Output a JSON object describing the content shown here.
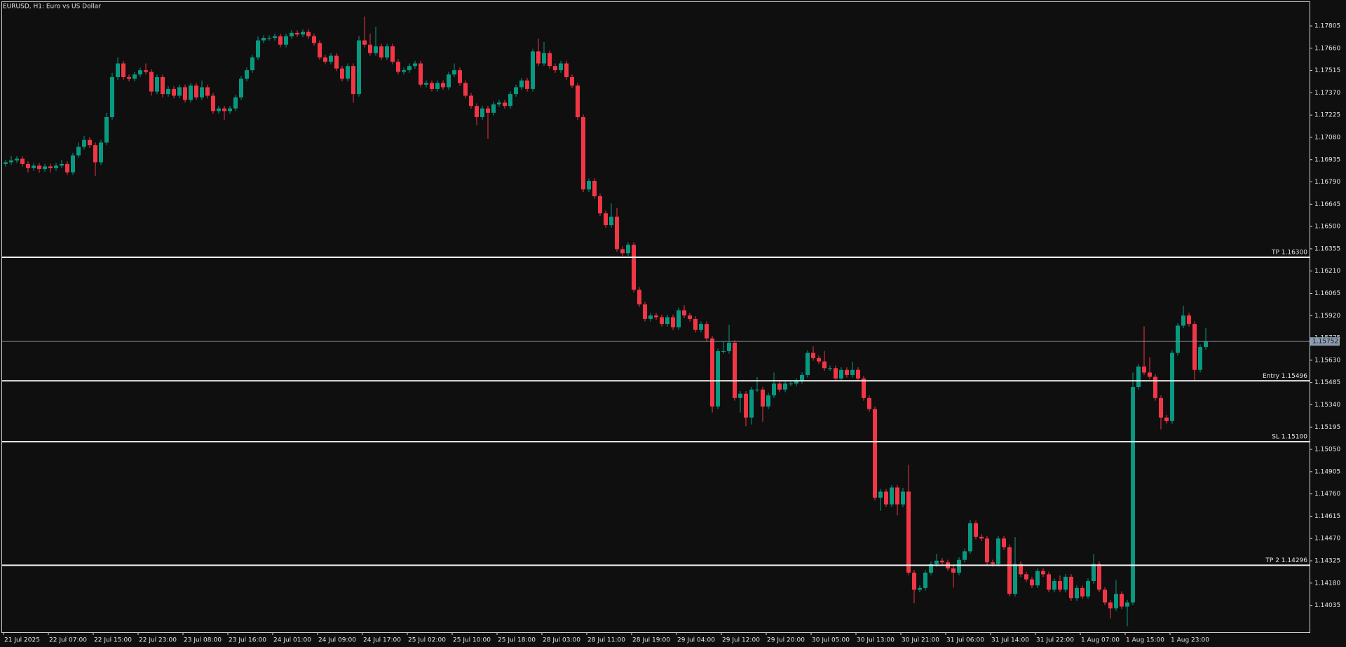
{
  "chart_data": {
    "type": "candlestick",
    "title": "EURUSD, H1:  Euro vs US Dollar",
    "up_color": "#089981",
    "down_color": "#f23645",
    "ylim": [
      1.1386,
      1.1796
    ],
    "yticks": [
      1.17805,
      {
        "value": 1.1766,
        "label": "1.17660"
      },
      1.17515,
      {
        "value": 1.1737,
        "label": "1.17370"
      },
      1.17225,
      {
        "value": 1.1708,
        "label": "1.17080"
      },
      1.16935,
      {
        "value": 1.1679,
        "label": "1.16790"
      },
      1.16645,
      {
        "value": 1.165,
        "label": "1.16500"
      },
      1.16355,
      {
        "value": 1.1621,
        "label": "1.16210"
      },
      1.16065,
      {
        "value": 1.1592,
        "label": "1.15920"
      },
      1.15775,
      {
        "value": 1.1563,
        "label": "1.15630"
      },
      1.15485,
      {
        "value": 1.1534,
        "label": "1.15340"
      },
      1.15195,
      {
        "value": 1.1505,
        "label": "1.15050"
      },
      1.14905,
      {
        "value": 1.1476,
        "label": "1.14760"
      },
      1.14615,
      {
        "value": 1.1447,
        "label": "1.14470"
      },
      1.14325,
      {
        "value": 1.1418,
        "label": "1.14180"
      },
      1.14035
    ],
    "levels": [
      {
        "label": "TP 1.16300",
        "value": 1.163
      },
      {
        "label": "Entry 1.15496",
        "value": 1.15496
      },
      {
        "label": "SL 1.15100",
        "value": 1.151
      },
      {
        "label": "TP 2 1.14296",
        "value": 1.14296
      }
    ],
    "last_price": 1.15752,
    "categories": [
      "21 Jul 2025",
      null,
      null,
      null,
      null,
      null,
      null,
      null,
      "22 Jul 07:00",
      null,
      null,
      null,
      null,
      null,
      null,
      null,
      "22 Jul 15:00",
      null,
      null,
      null,
      null,
      null,
      null,
      null,
      "22 Jul 23:00",
      null,
      null,
      null,
      null,
      null,
      null,
      null,
      "23 Jul 08:00",
      null,
      null,
      null,
      null,
      null,
      null,
      null,
      "23 Jul 16:00",
      null,
      null,
      null,
      null,
      null,
      null,
      null,
      "24 Jul 01:00",
      null,
      null,
      null,
      null,
      null,
      null,
      null,
      "24 Jul 09:00",
      null,
      null,
      null,
      null,
      null,
      null,
      null,
      "24 Jul 17:00",
      null,
      null,
      null,
      null,
      null,
      null,
      null,
      "25 Jul 02:00",
      null,
      null,
      null,
      null,
      null,
      null,
      null,
      "25 Jul 10:00",
      null,
      null,
      null,
      null,
      null,
      null,
      null,
      "25 Jul 18:00",
      null,
      null,
      null,
      null,
      null,
      null,
      null,
      "28 Jul 03:00",
      null,
      null,
      null,
      null,
      null,
      null,
      null,
      "28 Jul 11:00",
      null,
      null,
      null,
      null,
      null,
      null,
      null,
      "28 Jul 19:00",
      null,
      null,
      null,
      null,
      null,
      null,
      null,
      "29 Jul 04:00",
      null,
      null,
      null,
      null,
      null,
      null,
      null,
      "29 Jul 12:00",
      null,
      null,
      null,
      null,
      null,
      null,
      null,
      "29 Jul 20:00",
      null,
      null,
      null,
      null,
      null,
      null,
      null,
      "30 Jul 05:00",
      null,
      null,
      null,
      null,
      null,
      null,
      null,
      "30 Jul 13:00",
      null,
      null,
      null,
      null,
      null,
      null,
      null,
      "30 Jul 21:00",
      null,
      null,
      null,
      null,
      null,
      null,
      null,
      "31 Jul 06:00",
      null,
      null,
      null,
      null,
      null,
      null,
      null,
      "31 Jul 14:00",
      null,
      null,
      null,
      null,
      null,
      null,
      null,
      "31 Jul 22:00",
      null,
      null,
      null,
      null,
      null,
      null,
      null,
      "1 Aug 07:00",
      null,
      null,
      null,
      null,
      null,
      null,
      null,
      "1 Aug 15:00",
      null,
      null,
      null,
      null,
      null,
      null,
      null,
      "1 Aug 23:00",
      null,
      null,
      null,
      null,
      null,
      null
    ],
    "open": [
      1.16907,
      1.16918,
      1.1693,
      1.16941,
      1.16907,
      1.1688,
      1.16896,
      1.16874,
      1.16891,
      1.1688,
      1.16896,
      1.16907,
      1.16852,
      1.16963,
      1.17018,
      1.17063,
      1.17029,
      1.16918,
      1.17046,
      1.17212,
      1.17472,
      1.17561,
      1.17472,
      1.17461,
      1.17489,
      1.17517,
      1.17506,
      1.17378,
      1.17472,
      1.17362,
      1.17395,
      1.17351,
      1.17406,
      1.17323,
      1.17417,
      1.1734,
      1.17406,
      1.17351,
      1.17251,
      1.17268,
      1.17251,
      1.17268,
      1.1734,
      1.17461,
      1.17517,
      1.176,
      1.17711,
      1.17727,
      1.17727,
      1.17738,
      1.17683,
      1.17738,
      1.1776,
      1.17749,
      1.17766,
      1.17738,
      1.17694,
      1.176,
      1.17572,
      1.17611,
      1.17528,
      1.17461,
      1.17544,
      1.17362,
      1.17711,
      1.17683,
      1.17628,
      1.17672,
      1.176,
      1.17672,
      1.17572,
      1.17506,
      1.17517,
      1.17544,
      1.17561,
      1.17423,
      1.17434,
      1.17395,
      1.17434,
      1.17406,
      1.17489,
      1.17517,
      1.17434,
      1.17351,
      1.17284,
      1.17212,
      1.17268,
      1.1724,
      1.17295,
      1.17306,
      1.17284,
      1.17362,
      1.17406,
      1.1745,
      1.17395,
      1.17639,
      1.17561,
      1.17628,
      1.17544,
      1.17517,
      1.17561,
      1.17472,
      1.17417,
      1.17212,
      1.16741,
      1.16797,
      1.16697,
      1.16586,
      1.16509,
      1.16564,
      1.16353,
      1.16326,
      1.16381,
      1.16088,
      1.15993,
      1.15899,
      1.15921,
      1.1591,
      1.15866,
      1.1591,
      1.15844,
      1.15955,
      1.15921,
      1.15899,
      1.15827,
      1.15866,
      1.15772,
      1.15329,
      1.15689,
      1.15689,
      1.15744,
      1.15384,
      1.15412,
      1.15257,
      1.15439,
      1.15439,
      1.15329,
      1.15401,
      1.15478,
      1.15439,
      1.15478,
      1.15478,
      1.15495,
      1.15534,
      1.15678,
      1.15644,
      1.15622,
      1.15578,
      1.15578,
      1.15511,
      1.15567,
      1.15534,
      1.15567,
      1.15511,
      1.15384,
      1.15312,
      1.14736,
      1.14775,
      1.14692,
      1.14802,
      1.14692,
      1.14775,
      1.14248,
      1.14137,
      1.14148,
      1.14248,
      1.14304,
      1.14326,
      1.14315,
      1.14276,
      1.14248,
      1.14331,
      1.14387,
      1.1457,
      1.14481,
      1.1447,
      1.14315,
      1.14304,
      1.1447,
      1.14414,
      1.1411,
      1.14304,
      1.14237,
      1.14204,
      1.14165,
      1.14259,
      1.14237,
      1.14137,
      1.14193,
      1.14137,
      1.14221,
      1.14082,
      1.14148,
      1.14093,
      1.14193,
      1.14304,
      1.14137,
      1.14054,
      1.14016,
      1.1411,
      1.14027,
      1.14054,
      1.15456,
      1.15589,
      1.1555,
      1.15522,
      1.15384,
      1.15257,
      1.15234,
      1.15678,
      1.15855,
      1.15921,
      1.15866,
      1.15567,
      1.15716
    ],
    "high": [
      1.16935,
      1.1696,
      1.16958,
      1.16958,
      1.16924,
      1.16913,
      1.16913,
      1.16908,
      1.16908,
      1.16913,
      1.16935,
      1.16924,
      1.1698,
      1.17046,
      1.1709,
      1.1708,
      1.17046,
      1.17063,
      1.1724,
      1.175,
      1.176,
      1.17578,
      1.17489,
      1.17506,
      1.17534,
      1.17561,
      1.17523,
      1.17489,
      1.17489,
      1.17412,
      1.17412,
      1.17423,
      1.17423,
      1.17434,
      1.17434,
      1.1745,
      1.17423,
      1.17368,
      1.17285,
      1.17285,
      1.17285,
      1.17357,
      1.17478,
      1.17534,
      1.17617,
      1.17738,
      1.17744,
      1.17744,
      1.17755,
      1.17755,
      1.17755,
      1.17777,
      1.17777,
      1.17783,
      1.17783,
      1.17755,
      1.17711,
      1.17617,
      1.17628,
      1.17628,
      1.17545,
      1.17561,
      1.17561,
      1.17738,
      1.17866,
      1.17755,
      1.178,
      1.17689,
      1.17689,
      1.17689,
      1.17589,
      1.17534,
      1.17561,
      1.17578,
      1.17578,
      1.17451,
      1.17451,
      1.17451,
      1.17451,
      1.17506,
      1.17561,
      1.17534,
      1.17451,
      1.17368,
      1.17301,
      1.17285,
      1.17285,
      1.17312,
      1.17323,
      1.17323,
      1.17379,
      1.17423,
      1.17467,
      1.17467,
      1.17656,
      1.17722,
      1.177,
      1.17645,
      1.17561,
      1.17578,
      1.17578,
      1.17489,
      1.17434,
      1.17229,
      1.16814,
      1.16814,
      1.16714,
      1.16603,
      1.1665,
      1.1662,
      1.1637,
      1.16398,
      1.16398,
      1.16105,
      1.1601,
      1.15938,
      1.15938,
      1.15927,
      1.15927,
      1.15927,
      1.15972,
      1.1599,
      1.15938,
      1.15916,
      1.15883,
      1.15883,
      1.15789,
      1.15706,
      1.15755,
      1.1586,
      1.15761,
      1.15429,
      1.15429,
      1.15456,
      1.1552,
      1.15456,
      1.15418,
      1.1555,
      1.15495,
      1.15495,
      1.15495,
      1.15512,
      1.15551,
      1.15695,
      1.1572,
      1.15661,
      1.1569,
      1.15595,
      1.15595,
      1.15584,
      1.15584,
      1.1562,
      1.15584,
      1.15528,
      1.15401,
      1.15329,
      1.14792,
      1.14792,
      1.14819,
      1.14819,
      1.148,
      1.1495,
      1.14265,
      1.14165,
      1.14265,
      1.14321,
      1.1437,
      1.14343,
      1.14332,
      1.14293,
      1.14348,
      1.14404,
      1.1459,
      1.14587,
      1.14498,
      1.14487,
      1.14332,
      1.14487,
      1.14487,
      1.14431,
      1.1448,
      1.14321,
      1.14254,
      1.14221,
      1.14276,
      1.14276,
      1.14254,
      1.1421,
      1.1423,
      1.14238,
      1.14238,
      1.14165,
      1.14165,
      1.1421,
      1.1437,
      1.14321,
      1.14154,
      1.14071,
      1.142,
      1.14127,
      1.14071,
      1.1555,
      1.15606,
      1.1585,
      1.1565,
      1.15539,
      1.15401,
      1.15274,
      1.15695,
      1.15872,
      1.15985,
      1.15938,
      1.15883,
      1.15733,
      1.15838
    ],
    "low": [
      1.1689,
      1.16901,
      1.16913,
      1.1689,
      1.16852,
      1.16863,
      1.1685,
      1.16857,
      1.16852,
      1.16863,
      1.16879,
      1.16835,
      1.16835,
      1.16946,
      1.17001,
      1.17012,
      1.1683,
      1.16901,
      1.17029,
      1.17195,
      1.17455,
      1.17455,
      1.17444,
      1.17444,
      1.17472,
      1.17489,
      1.17351,
      1.17361,
      1.1734,
      1.17345,
      1.17334,
      1.17334,
      1.17306,
      1.17306,
      1.17323,
      1.17323,
      1.17334,
      1.17234,
      1.17234,
      1.17195,
      1.17234,
      1.17251,
      1.17323,
      1.17444,
      1.175,
      1.17583,
      1.17694,
      1.1771,
      1.1771,
      1.17666,
      1.17666,
      1.17721,
      1.17732,
      1.17732,
      1.17721,
      1.17677,
      1.17583,
      1.17555,
      1.17555,
      1.17511,
      1.17444,
      1.17444,
      1.17306,
      1.17345,
      1.17666,
      1.17611,
      1.17611,
      1.17583,
      1.17583,
      1.17555,
      1.17489,
      1.17489,
      1.175,
      1.17527,
      1.17406,
      1.17406,
      1.17378,
      1.17378,
      1.17389,
      1.17389,
      1.17472,
      1.17417,
      1.17334,
      1.17267,
      1.1716,
      1.17195,
      1.1707,
      1.17223,
      1.17278,
      1.17267,
      1.17267,
      1.17345,
      1.17389,
      1.17378,
      1.17378,
      1.17544,
      1.17544,
      1.17527,
      1.175,
      1.175,
      1.17455,
      1.174,
      1.17195,
      1.16724,
      1.16724,
      1.1668,
      1.16569,
      1.16492,
      1.16492,
      1.16336,
      1.16309,
      1.16309,
      1.16071,
      1.15976,
      1.15882,
      1.15882,
      1.15893,
      1.15849,
      1.15849,
      1.15827,
      1.15827,
      1.15904,
      1.15882,
      1.1581,
      1.1581,
      1.15755,
      1.1529,
      1.15312,
      1.15672,
      1.15672,
      1.15367,
      1.1529,
      1.152,
      1.15212,
      1.15422,
      1.1523,
      1.15312,
      1.15384,
      1.15422,
      1.15422,
      1.15461,
      1.15461,
      1.15478,
      1.15517,
      1.15627,
      1.15605,
      1.15561,
      1.15561,
      1.15494,
      1.15494,
      1.15517,
      1.15517,
      1.15494,
      1.15367,
      1.15295,
      1.14719,
      1.1465,
      1.14675,
      1.14675,
      1.1462,
      1.14675,
      1.14231,
      1.1405,
      1.1412,
      1.14131,
      1.14231,
      1.14287,
      1.14298,
      1.14259,
      1.1415,
      1.14231,
      1.14314,
      1.1437,
      1.14464,
      1.14453,
      1.14298,
      1.14287,
      1.14287,
      1.14397,
      1.14093,
      1.14093,
      1.1422,
      1.14187,
      1.14148,
      1.14148,
      1.1422,
      1.1412,
      1.1412,
      1.1412,
      1.1412,
      1.14065,
      1.14065,
      1.14076,
      1.14076,
      1.14176,
      1.1412,
      1.14037,
      1.1395,
      1.13999,
      1.1401,
      1.139,
      1.14037,
      1.15439,
      1.15533,
      1.15505,
      1.15367,
      1.1518,
      1.15217,
      1.15217,
      1.15661,
      1.15838,
      1.15849,
      1.155,
      1.1555,
      1.15699
    ],
    "close": [
      1.16918,
      1.1693,
      1.16941,
      1.16907,
      1.1688,
      1.16896,
      1.16874,
      1.16891,
      1.1688,
      1.16896,
      1.16907,
      1.16852,
      1.16963,
      1.17018,
      1.17063,
      1.17029,
      1.16918,
      1.17046,
      1.17212,
      1.17472,
      1.17561,
      1.17472,
      1.17461,
      1.17489,
      1.17517,
      1.17506,
      1.17378,
      1.17472,
      1.17362,
      1.17395,
      1.17351,
      1.17406,
      1.17323,
      1.17417,
      1.1734,
      1.17406,
      1.17351,
      1.17251,
      1.17268,
      1.17251,
      1.17268,
      1.1734,
      1.17461,
      1.17517,
      1.176,
      1.17711,
      1.17727,
      1.17727,
      1.17738,
      1.17683,
      1.17738,
      1.1776,
      1.17749,
      1.17766,
      1.17738,
      1.17694,
      1.176,
      1.17572,
      1.17611,
      1.17528,
      1.17461,
      1.17544,
      1.17362,
      1.17711,
      1.17683,
      1.17628,
      1.17672,
      1.176,
      1.17672,
      1.17572,
      1.17506,
      1.17517,
      1.17544,
      1.17561,
      1.17423,
      1.17434,
      1.17395,
      1.17434,
      1.17406,
      1.17489,
      1.17517,
      1.17434,
      1.17351,
      1.17284,
      1.17212,
      1.17268,
      1.1724,
      1.17295,
      1.17306,
      1.17284,
      1.17362,
      1.17406,
      1.1745,
      1.17395,
      1.17639,
      1.17561,
      1.17628,
      1.17544,
      1.17517,
      1.17561,
      1.17472,
      1.17417,
      1.17212,
      1.16741,
      1.16797,
      1.16697,
      1.16586,
      1.16509,
      1.16564,
      1.16353,
      1.16326,
      1.16381,
      1.16088,
      1.15993,
      1.15899,
      1.15921,
      1.1591,
      1.15866,
      1.1591,
      1.15844,
      1.15955,
      1.15921,
      1.15899,
      1.15827,
      1.15866,
      1.15772,
      1.15329,
      1.15689,
      1.15689,
      1.15744,
      1.15384,
      1.15412,
      1.15257,
      1.15439,
      1.15439,
      1.15329,
      1.15401,
      1.15478,
      1.15439,
      1.15478,
      1.15478,
      1.15495,
      1.15534,
      1.15678,
      1.15644,
      1.15622,
      1.15578,
      1.15578,
      1.15511,
      1.15567,
      1.15534,
      1.15567,
      1.15511,
      1.15384,
      1.15312,
      1.14736,
      1.14775,
      1.14692,
      1.14802,
      1.14692,
      1.14775,
      1.14248,
      1.14137,
      1.14148,
      1.14248,
      1.14304,
      1.14326,
      1.14315,
      1.14276,
      1.14248,
      1.14331,
      1.14387,
      1.1457,
      1.14481,
      1.1447,
      1.14315,
      1.14304,
      1.1447,
      1.14414,
      1.1411,
      1.14304,
      1.14237,
      1.14204,
      1.14165,
      1.14259,
      1.14237,
      1.14137,
      1.14193,
      1.14137,
      1.14221,
      1.14082,
      1.14148,
      1.14093,
      1.14193,
      1.14304,
      1.14137,
      1.14054,
      1.14016,
      1.1411,
      1.14027,
      1.14054,
      1.15456,
      1.15589,
      1.1555,
      1.15522,
      1.15384,
      1.15257,
      1.15234,
      1.15678,
      1.15855,
      1.15921,
      1.15866,
      1.15567,
      1.15716,
      1.15752
    ]
  }
}
